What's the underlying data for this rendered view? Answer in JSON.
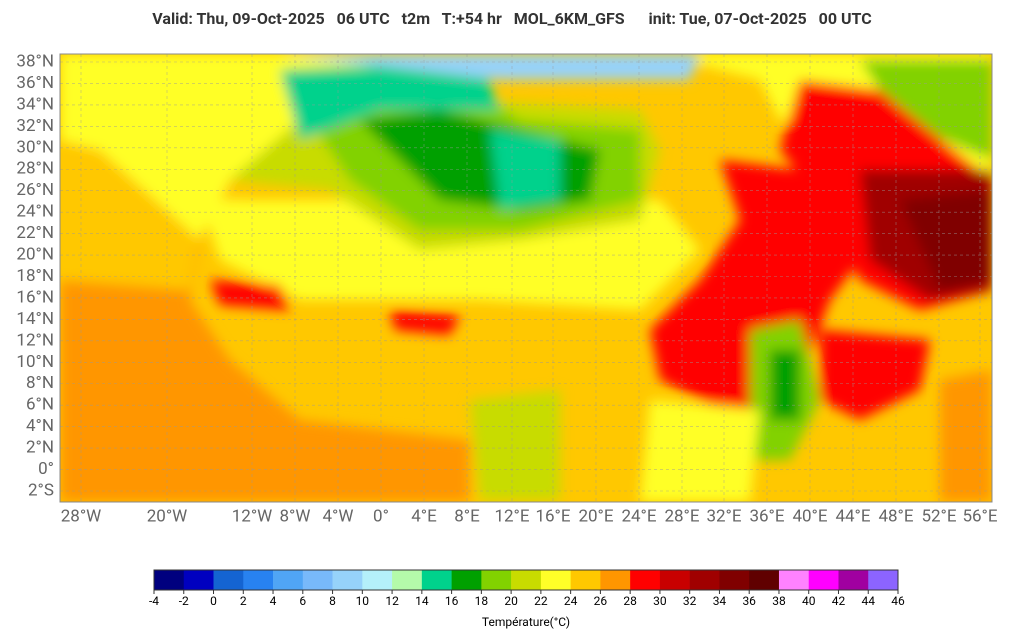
{
  "header": {
    "title": "Valid: Thu, 09-Oct-2025   06 UTC   t2m   T:+54 hr   MOL_6KM_GFS      init: Tue, 07-Oct-2025   00 UTC"
  },
  "map": {
    "lat_labels": [
      "38°N",
      "36°N",
      "34°N",
      "32°N",
      "30°N",
      "28°N",
      "26°N",
      "24°N",
      "22°N",
      "20°N",
      "18°N",
      "16°N",
      "14°N",
      "12°N",
      "10°N",
      "8°N",
      "6°N",
      "4°N",
      "2°N",
      "0°",
      "2°S"
    ],
    "lon_labels": [
      "28°W",
      "20°W",
      "12°W",
      "8°W",
      "4°W",
      "0°",
      "4°E",
      "8°E",
      "12°E",
      "16°E",
      "20°E",
      "24°E",
      "28°E",
      "32°E",
      "36°E",
      "40°E",
      "44°E",
      "48°E",
      "52°E",
      "56°E"
    ]
  },
  "colorbar": {
    "colors": [
      "#00007f",
      "#0000c0",
      "#1464d2",
      "#2882f0",
      "#50a5f5",
      "#78b9fa",
      "#96d2fa",
      "#b4f0fa",
      "#b4faaa",
      "#00d28c",
      "#00a000",
      "#82d200",
      "#c8dc00",
      "#ffff28",
      "#ffc800",
      "#ff9600",
      "#ff0000",
      "#c80000",
      "#a00000",
      "#800000",
      "#600000",
      "#ff82ff",
      "#ff00ff",
      "#a000a0",
      "#8c64ff"
    ],
    "ticks": [
      -4,
      -2,
      0,
      2,
      4,
      6,
      8,
      10,
      12,
      14,
      16,
      18,
      20,
      22,
      24,
      26,
      28,
      30,
      32,
      34,
      36,
      38,
      40,
      42,
      44,
      46
    ],
    "label": "Température(°C)"
  }
}
